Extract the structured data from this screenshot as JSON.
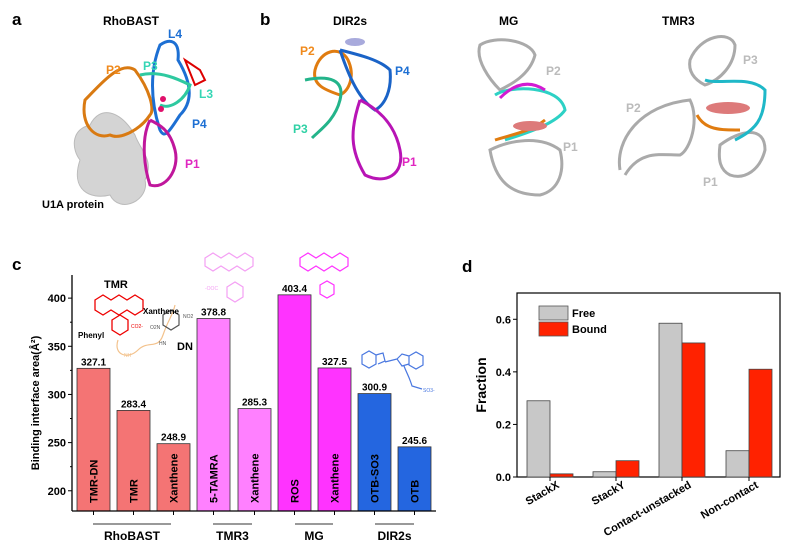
{
  "panels": {
    "a": {
      "letter": "a",
      "title": "RhoBAST",
      "labels": [
        "L4",
        "P2",
        "P3",
        "L3",
        "P4",
        "P1"
      ],
      "protein": "U1A protein"
    },
    "b": {
      "letter": "b",
      "title": "DIR2s",
      "labels": [
        "P2",
        "P4",
        "P3",
        "P1"
      ]
    },
    "mg": {
      "title": "MG",
      "labels": [
        "P2",
        "P1"
      ]
    },
    "tmr3": {
      "title": "TMR3",
      "labels": [
        "P3",
        "P2",
        "P1"
      ]
    },
    "c": {
      "letter": "c"
    },
    "d": {
      "letter": "d"
    }
  },
  "structures": {
    "tmr": "TMR",
    "xanthene": "Xanthene",
    "phenyl": "Phenyl",
    "dn": "DN",
    "co2": "CO2-",
    "no2a": "NO2",
    "no2b": "O2N",
    "hn": "HN",
    "nh": "NH",
    "so3": "SO3-",
    "ooc": "-OOC"
  },
  "colors": {
    "rhobast": "#f47474",
    "tmr3": "#ff80ff",
    "mg": "#ff33ff",
    "dir2s": "#2466e0",
    "free": "#c8c8c8",
    "bound": "#ff2200"
  },
  "chart_data": [
    {
      "type": "bar",
      "title": "",
      "ylabel": "Binding interface area(Å²)",
      "xlabel": "",
      "ylim": [
        179,
        424
      ],
      "yticks": [
        200,
        250,
        300,
        350,
        400
      ],
      "categories": [
        "TMR-DN",
        "TMR",
        "Xanthene",
        "5-TAMRA",
        "Xanthene",
        "ROS",
        "Xanthene",
        "OTB-SO3",
        "OTB"
      ],
      "values": [
        327.1,
        283.4,
        248.9,
        378.8,
        285.3,
        403.4,
        327.5,
        300.9,
        245.6
      ],
      "value_labels": [
        "327.1",
        "283.4",
        "248.9",
        "378.8",
        "285.3",
        "403.4",
        "327.5",
        "300.9",
        "245.6"
      ],
      "groups": [
        {
          "name": "RhoBAST",
          "members": [
            0,
            1,
            2
          ]
        },
        {
          "name": "TMR3",
          "members": [
            3,
            4
          ]
        },
        {
          "name": "MG",
          "members": [
            5,
            6
          ]
        },
        {
          "name": "DIR2s",
          "members": [
            7,
            8
          ]
        }
      ]
    },
    {
      "type": "bar",
      "title": "",
      "ylabel": "Fraction",
      "xlabel": "",
      "ylim": [
        0,
        0.7
      ],
      "yticks": [
        "0.0",
        "0.2",
        "0.4",
        "0.6"
      ],
      "categories": [
        "StackX",
        "StackY",
        "Contact-unstacked",
        "Non-contact"
      ],
      "series": [
        {
          "name": "Free",
          "values": [
            0.29,
            0.02,
            0.585,
            0.1
          ]
        },
        {
          "name": "Bound",
          "values": [
            0.012,
            0.062,
            0.51,
            0.41
          ]
        }
      ],
      "legend": "top-left"
    }
  ]
}
